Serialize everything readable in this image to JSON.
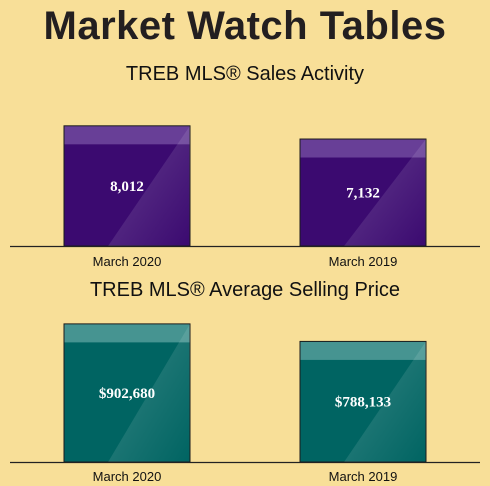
{
  "page": {
    "title": "Market Watch Tables"
  },
  "chart_data": [
    {
      "type": "bar",
      "title": "TREB MLS® Sales Activity",
      "categories": [
        "March 2020",
        "March 2019"
      ],
      "values": [
        8012,
        7132
      ],
      "value_labels": [
        "8,012",
        "7,132"
      ],
      "ylim": [
        0,
        9200
      ],
      "color": "#3b0a70",
      "highlight": "#8e6bb8",
      "grid": false
    },
    {
      "type": "bar",
      "title": "TREB MLS® Average Selling Price",
      "categories": [
        "March 2020",
        "March 2019"
      ],
      "values": [
        902680,
        788133
      ],
      "value_labels": [
        "$902,680",
        "$788,133"
      ],
      "ylim": [
        0,
        1000000
      ],
      "color": "#006462",
      "highlight": "#7fbcb8",
      "grid": false
    }
  ]
}
